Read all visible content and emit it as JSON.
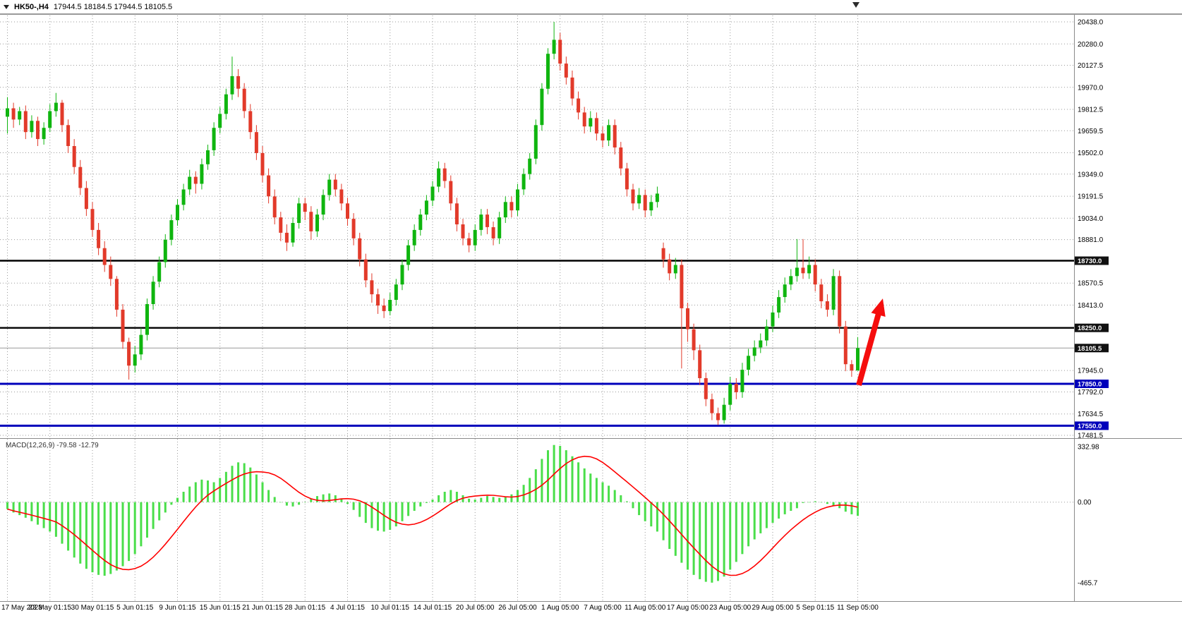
{
  "title_bar": {
    "symbol": "HK50-,H4",
    "quote": "17944.5 18184.5 17944.5 18105.5"
  },
  "colors": {
    "up_candle": "#0fb50f",
    "down_candle": "#e23a2a",
    "macd_histogram": "#4ade4a",
    "macd_signal": "#ff0000",
    "level_black": "#000000",
    "level_blue": "#0000bb",
    "current_price_gray": "#999999",
    "tag_dark_bg": "#111111",
    "tag_blue_bg": "#0000bb",
    "arrow_red": "#f50d0d",
    "grid_gray": "#9a9a9a"
  },
  "chart_data": [
    {
      "type": "candlestick",
      "title": "HK50-,H4",
      "timeframe": "H4",
      "ylim": [
        17481.5,
        20438.0
      ],
      "price_ticks": [
        {
          "v": 20438.0,
          "t": "20438.0"
        },
        {
          "v": 20280.0,
          "t": "20280.0"
        },
        {
          "v": 20127.5,
          "t": "20127.5"
        },
        {
          "v": 19970.0,
          "t": "19970.0"
        },
        {
          "v": 19812.5,
          "t": "19812.5"
        },
        {
          "v": 19659.5,
          "t": "19659.5"
        },
        {
          "v": 19502.0,
          "t": "19502.0"
        },
        {
          "v": 19349.0,
          "t": "19349.0"
        },
        {
          "v": 19191.5,
          "t": "19191.5"
        },
        {
          "v": 19034.0,
          "t": "19034.0"
        },
        {
          "v": 18881.0,
          "t": "18881.0"
        },
        {
          "v": 18570.5,
          "t": "18570.5"
        },
        {
          "v": 18413.0,
          "t": "18413.0"
        },
        {
          "v": 17945.0,
          "t": "17945.0"
        },
        {
          "v": 17792.0,
          "t": "17792.0"
        },
        {
          "v": 17634.5,
          "t": "17634.5"
        },
        {
          "v": 17481.5,
          "t": "17481.5"
        }
      ],
      "levels": [
        {
          "v": 18730.0,
          "t": "18730.0",
          "style": "black"
        },
        {
          "v": 18250.0,
          "t": "18250.0",
          "style": "black"
        },
        {
          "v": 18105.5,
          "t": "18105.5",
          "style": "current"
        },
        {
          "v": 17850.0,
          "t": "17850.0",
          "style": "blue"
        },
        {
          "v": 17550.0,
          "t": "17550.0",
          "style": "blue"
        }
      ],
      "time_ticks": [
        "17 May 2023",
        "23 May 01:15",
        "30 May 01:15",
        "5 Jun 01:15",
        "9 Jun 01:15",
        "15 Jun 01:15",
        "21 Jun 01:15",
        "28 Jun 01:15",
        "4 Jul 01:15",
        "10 Jul 01:15",
        "14 Jul 01:15",
        "20 Jul 05:00",
        "26 Jul 05:00",
        "1 Aug 05:00",
        "7 Aug 05:00",
        "11 Aug 05:00",
        "17 Aug 05:00",
        "23 Aug 05:00",
        "29 Aug 05:00",
        "5 Sep 01:15",
        "11 Sep 05:00"
      ],
      "candles_ohlc": [
        [
          19760,
          19900,
          19640,
          19820
        ],
        [
          19820,
          19860,
          19680,
          19740
        ],
        [
          19740,
          19830,
          19700,
          19800
        ],
        [
          19800,
          19840,
          19600,
          19650
        ],
        [
          19650,
          19770,
          19610,
          19730
        ],
        [
          19730,
          19760,
          19550,
          19600
        ],
        [
          19600,
          19720,
          19560,
          19680
        ],
        [
          19680,
          19850,
          19650,
          19800
        ],
        [
          19800,
          19930,
          19760,
          19860
        ],
        [
          19860,
          19880,
          19650,
          19700
        ],
        [
          19700,
          19740,
          19500,
          19550
        ],
        [
          19550,
          19600,
          19350,
          19400
        ],
        [
          19400,
          19450,
          19200,
          19250
        ],
        [
          19250,
          19300,
          19050,
          19100
        ],
        [
          19100,
          19150,
          18900,
          18950
        ],
        [
          18950,
          19000,
          18770,
          18820
        ],
        [
          18820,
          18870,
          18650,
          18700
        ],
        [
          18700,
          18760,
          18550,
          18600
        ],
        [
          18600,
          18620,
          18330,
          18380
        ],
        [
          18380,
          18420,
          18100,
          18150
        ],
        [
          18150,
          18180,
          17880,
          17980
        ],
        [
          17980,
          18120,
          17930,
          18060
        ],
        [
          18060,
          18250,
          18020,
          18200
        ],
        [
          18200,
          18460,
          18160,
          18420
        ],
        [
          18420,
          18620,
          18380,
          18580
        ],
        [
          18580,
          18760,
          18540,
          18720
        ],
        [
          18720,
          18920,
          18680,
          18880
        ],
        [
          18880,
          19060,
          18840,
          19020
        ],
        [
          19020,
          19170,
          18980,
          19130
        ],
        [
          19130,
          19280,
          19090,
          19240
        ],
        [
          19240,
          19380,
          19200,
          19330
        ],
        [
          19330,
          19370,
          19210,
          19280
        ],
        [
          19280,
          19460,
          19240,
          19420
        ],
        [
          19420,
          19560,
          19380,
          19520
        ],
        [
          19520,
          19720,
          19480,
          19680
        ],
        [
          19680,
          19830,
          19640,
          19780
        ],
        [
          19780,
          19960,
          19740,
          19920
        ],
        [
          19920,
          20190,
          19880,
          20050
        ],
        [
          20050,
          20100,
          19900,
          19960
        ],
        [
          19960,
          20000,
          19750,
          19800
        ],
        [
          19800,
          19850,
          19600,
          19650
        ],
        [
          19650,
          19700,
          19450,
          19500
        ],
        [
          19500,
          19550,
          19290,
          19340
        ],
        [
          19340,
          19390,
          19140,
          19190
        ],
        [
          19190,
          19240,
          18990,
          19040
        ],
        [
          19040,
          19080,
          18870,
          18930
        ],
        [
          18930,
          18990,
          18800,
          18860
        ],
        [
          18860,
          19040,
          18830,
          19000
        ],
        [
          19000,
          19180,
          18960,
          19140
        ],
        [
          19140,
          19180,
          19020,
          19080
        ],
        [
          19080,
          19120,
          18880,
          18940
        ],
        [
          18940,
          19100,
          18900,
          19060
        ],
        [
          19060,
          19240,
          19020,
          19200
        ],
        [
          19200,
          19350,
          19160,
          19310
        ],
        [
          19310,
          19350,
          19190,
          19240
        ],
        [
          19240,
          19280,
          19090,
          19140
        ],
        [
          19140,
          19180,
          18980,
          19030
        ],
        [
          19030,
          19070,
          18840,
          18890
        ],
        [
          18890,
          18930,
          18690,
          18740
        ],
        [
          18740,
          18780,
          18540,
          18590
        ],
        [
          18590,
          18640,
          18430,
          18490
        ],
        [
          18490,
          18530,
          18350,
          18410
        ],
        [
          18410,
          18460,
          18320,
          18370
        ],
        [
          18370,
          18500,
          18340,
          18450
        ],
        [
          18450,
          18600,
          18410,
          18560
        ],
        [
          18560,
          18740,
          18520,
          18700
        ],
        [
          18700,
          18880,
          18660,
          18840
        ],
        [
          18840,
          18990,
          18800,
          18950
        ],
        [
          18950,
          19100,
          18910,
          19060
        ],
        [
          19060,
          19200,
          19020,
          19160
        ],
        [
          19160,
          19300,
          19120,
          19260
        ],
        [
          19260,
          19440,
          19220,
          19390
        ],
        [
          19390,
          19430,
          19250,
          19300
        ],
        [
          19300,
          19340,
          19090,
          19140
        ],
        [
          19140,
          19180,
          18940,
          18990
        ],
        [
          18990,
          19030,
          18840,
          18890
        ],
        [
          18890,
          18930,
          18790,
          18840
        ],
        [
          18840,
          18990,
          18800,
          18950
        ],
        [
          18950,
          19100,
          18910,
          19060
        ],
        [
          19060,
          19100,
          18920,
          18970
        ],
        [
          18970,
          19010,
          18840,
          18890
        ],
        [
          18890,
          19080,
          18850,
          19040
        ],
        [
          19040,
          19190,
          19000,
          19150
        ],
        [
          19150,
          19190,
          19040,
          19090
        ],
        [
          19090,
          19280,
          19050,
          19240
        ],
        [
          19240,
          19390,
          19200,
          19350
        ],
        [
          19350,
          19500,
          19310,
          19460
        ],
        [
          19460,
          19740,
          19420,
          19700
        ],
        [
          19700,
          20000,
          19660,
          19960
        ],
        [
          19960,
          20250,
          19920,
          20210
        ],
        [
          20210,
          20438,
          20170,
          20310
        ],
        [
          20310,
          20360,
          20090,
          20140
        ],
        [
          20140,
          20190,
          19990,
          20040
        ],
        [
          20040,
          20090,
          19840,
          19890
        ],
        [
          19890,
          19940,
          19740,
          19790
        ],
        [
          19790,
          19830,
          19640,
          19690
        ],
        [
          19690,
          19800,
          19650,
          19750
        ],
        [
          19750,
          19790,
          19590,
          19640
        ],
        [
          19640,
          19690,
          19540,
          19590
        ],
        [
          19590,
          19740,
          19550,
          19700
        ],
        [
          19700,
          19740,
          19490,
          19540
        ],
        [
          19540,
          19580,
          19340,
          19390
        ],
        [
          19390,
          19430,
          19190,
          19240
        ],
        [
          19240,
          19280,
          19090,
          19140
        ],
        [
          19140,
          19250,
          19100,
          19200
        ],
        [
          19200,
          19240,
          19040,
          19090
        ],
        [
          19090,
          19200,
          19050,
          19150
        ],
        [
          19150,
          19260,
          19110,
          19210
        ],
        [
          18820,
          18860,
          18680,
          18740
        ],
        [
          18740,
          18780,
          18590,
          18640
        ],
        [
          18640,
          18750,
          18600,
          18700
        ],
        [
          18700,
          18740,
          17960,
          18390
        ],
        [
          18390,
          18430,
          18150,
          18240
        ],
        [
          18240,
          18280,
          18020,
          18090
        ],
        [
          18090,
          18130,
          17840,
          17890
        ],
        [
          17890,
          17930,
          17690,
          17740
        ],
        [
          17740,
          17780,
          17590,
          17640
        ],
        [
          17640,
          17680,
          17555,
          17590
        ],
        [
          17590,
          17750,
          17565,
          17700
        ],
        [
          17700,
          17900,
          17660,
          17850
        ],
        [
          17850,
          17890,
          17740,
          17790
        ],
        [
          17790,
          18000,
          17750,
          17950
        ],
        [
          17950,
          18100,
          17910,
          18050
        ],
        [
          18050,
          18160,
          18010,
          18110
        ],
        [
          18110,
          18210,
          18070,
          18160
        ],
        [
          18160,
          18310,
          18120,
          18260
        ],
        [
          18260,
          18410,
          18220,
          18360
        ],
        [
          18360,
          18520,
          18320,
          18470
        ],
        [
          18470,
          18610,
          18430,
          18560
        ],
        [
          18560,
          18670,
          18520,
          18620
        ],
        [
          18620,
          18885,
          18580,
          18680
        ],
        [
          18680,
          18885,
          18600,
          18640
        ],
        [
          18640,
          18760,
          18600,
          18700
        ],
        [
          18700,
          18740,
          18510,
          18560
        ],
        [
          18560,
          18600,
          18390,
          18440
        ],
        [
          18440,
          18490,
          18330,
          18380
        ],
        [
          18380,
          18670,
          18340,
          18620
        ],
        [
          18620,
          18660,
          18210,
          18260
        ],
        [
          18260,
          18300,
          17940,
          17990
        ],
        [
          17990,
          18020,
          17900,
          17944.5
        ],
        [
          17944.5,
          18184.5,
          17944.5,
          18105.5
        ]
      ],
      "annotations": {
        "arrow": {
          "from_price": 17840,
          "to_price": 18460,
          "color": "#f50d0d",
          "direction": "up"
        }
      }
    },
    {
      "type": "bar",
      "name": "MACD",
      "label": "MACD(12,26,9) -79.58 -12.79",
      "params": "12,26,9",
      "main_value": -79.58,
      "signal_value": -12.79,
      "signal_period": 9,
      "ylim": [
        -465.7,
        332.98
      ],
      "ticks": [
        {
          "v": 332.98,
          "t": "332.98"
        },
        {
          "v": 0,
          "t": "0.00"
        },
        {
          "v": -465.7,
          "t": "-465.7"
        }
      ],
      "histogram": [
        -40,
        -60,
        -75,
        -90,
        -110,
        -130,
        -150,
        -170,
        -200,
        -240,
        -280,
        -320,
        -355,
        -385,
        -405,
        -420,
        -425,
        -415,
        -395,
        -370,
        -340,
        -300,
        -255,
        -205,
        -155,
        -105,
        -60,
        -15,
        25,
        60,
        90,
        115,
        130,
        125,
        115,
        140,
        175,
        210,
        230,
        225,
        200,
        160,
        115,
        70,
        30,
        0,
        -20,
        -25,
        -15,
        0,
        20,
        35,
        45,
        50,
        40,
        20,
        -10,
        -45,
        -85,
        -120,
        -150,
        -165,
        -170,
        -160,
        -140,
        -110,
        -80,
        -50,
        -25,
        -5,
        15,
        40,
        60,
        70,
        60,
        40,
        20,
        15,
        25,
        35,
        30,
        25,
        30,
        45,
        70,
        100,
        140,
        190,
        250,
        300,
        330,
        325,
        300,
        265,
        230,
        195,
        165,
        140,
        115,
        95,
        70,
        40,
        5,
        -35,
        -75,
        -110,
        -140,
        -170,
        -220,
        -270,
        -310,
        -350,
        -390,
        -420,
        -445,
        -460,
        -465,
        -455,
        -430,
        -390,
        -345,
        -300,
        -255,
        -215,
        -180,
        -150,
        -120,
        -95,
        -70,
        -50,
        -35,
        -5,
        0,
        5,
        0,
        -10,
        -20,
        -35,
        -55,
        -70,
        -79.58
      ]
    }
  ]
}
